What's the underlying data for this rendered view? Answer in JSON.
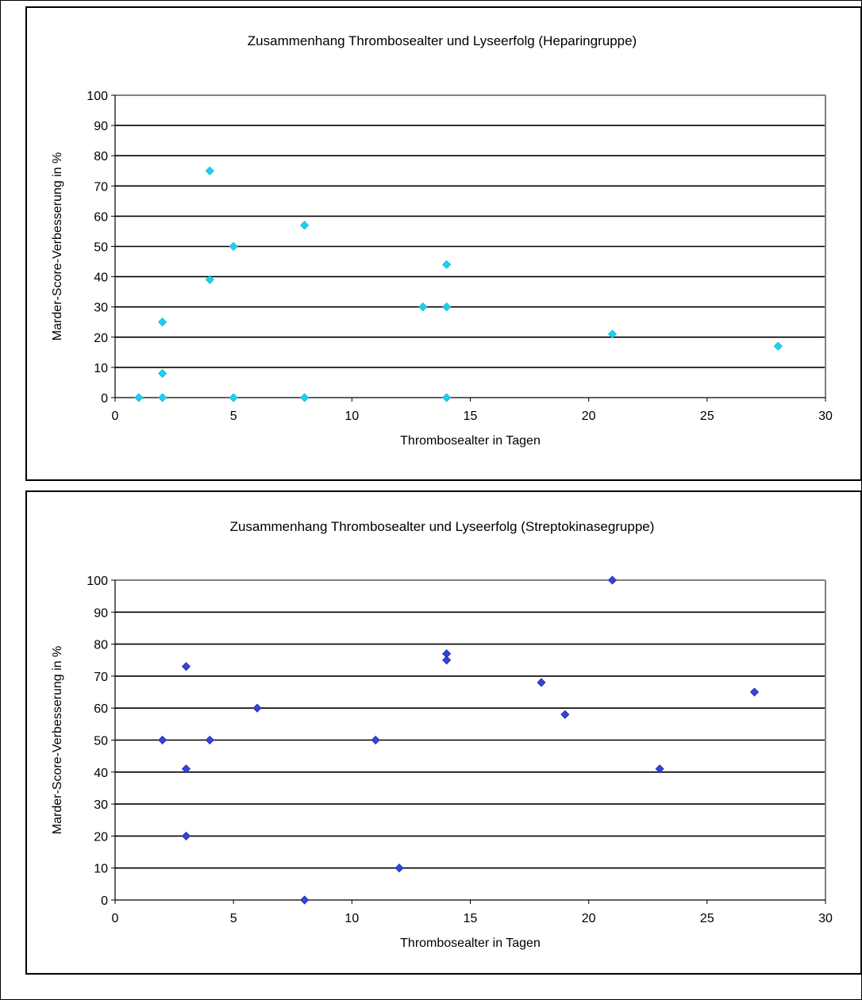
{
  "chart_data": [
    {
      "type": "scatter",
      "title": "Zusammenhang Thrombosealter und Lyseerfolg (Heparingruppe)",
      "xlabel": "Thrombosealter in Tagen",
      "ylabel": "Marder-Score-Verbesserung in %",
      "xlim": [
        0,
        30
      ],
      "ylim": [
        0,
        100
      ],
      "xticks": [
        "0",
        "5",
        "10",
        "15",
        "20",
        "25",
        "30"
      ],
      "yticks": [
        "0",
        "10",
        "20",
        "30",
        "40",
        "50",
        "60",
        "70",
        "80",
        "90",
        "100"
      ],
      "grid": "horizontal",
      "marker_color": "#1ad1f0",
      "points": [
        {
          "x": 1,
          "y": 0
        },
        {
          "x": 2,
          "y": 0
        },
        {
          "x": 2,
          "y": 8
        },
        {
          "x": 2,
          "y": 25
        },
        {
          "x": 4,
          "y": 39
        },
        {
          "x": 4,
          "y": 75
        },
        {
          "x": 5,
          "y": 50
        },
        {
          "x": 5,
          "y": 0
        },
        {
          "x": 8,
          "y": 57
        },
        {
          "x": 8,
          "y": 0
        },
        {
          "x": 13,
          "y": 30
        },
        {
          "x": 14,
          "y": 44
        },
        {
          "x": 14,
          "y": 30
        },
        {
          "x": 14,
          "y": 0
        },
        {
          "x": 21,
          "y": 21
        },
        {
          "x": 28,
          "y": 17
        }
      ]
    },
    {
      "type": "scatter",
      "title": "Zusammenhang Thrombosealter und Lyseerfolg (Streptokinasegruppe)",
      "xlabel": "Thrombosealter in Tagen",
      "ylabel": "Marder-Score-Verbesserung in %",
      "xlim": [
        0,
        30
      ],
      "ylim": [
        0,
        100
      ],
      "xticks": [
        "0",
        "5",
        "10",
        "15",
        "20",
        "25",
        "30"
      ],
      "yticks": [
        "0",
        "10",
        "20",
        "30",
        "40",
        "50",
        "60",
        "70",
        "80",
        "90",
        "100"
      ],
      "grid": "horizontal",
      "marker_color": "#2f45e0",
      "points": [
        {
          "x": 2,
          "y": 50
        },
        {
          "x": 3,
          "y": 73
        },
        {
          "x": 3,
          "y": 41
        },
        {
          "x": 3,
          "y": 20
        },
        {
          "x": 4,
          "y": 50
        },
        {
          "x": 6,
          "y": 60
        },
        {
          "x": 8,
          "y": 0
        },
        {
          "x": 11,
          "y": 50
        },
        {
          "x": 12,
          "y": 10
        },
        {
          "x": 14,
          "y": 77
        },
        {
          "x": 14,
          "y": 75
        },
        {
          "x": 18,
          "y": 68
        },
        {
          "x": 19,
          "y": 58
        },
        {
          "x": 21,
          "y": 100
        },
        {
          "x": 23,
          "y": 41
        },
        {
          "x": 27,
          "y": 65
        }
      ]
    }
  ]
}
